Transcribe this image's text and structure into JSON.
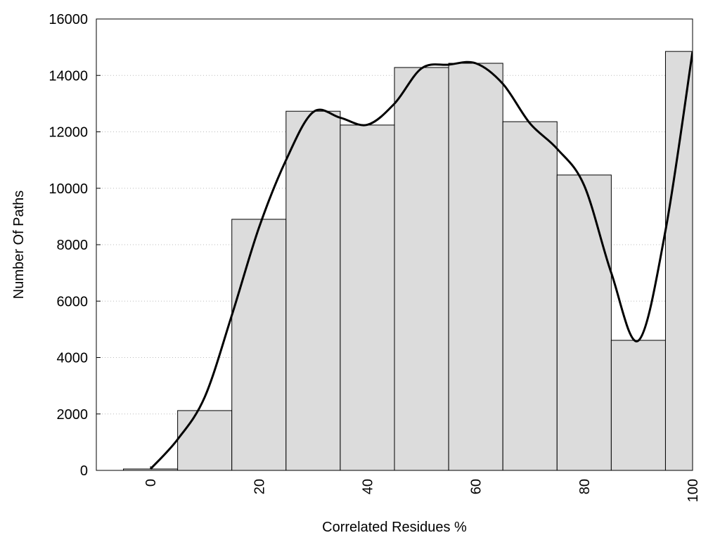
{
  "chart_data": {
    "type": "histogram",
    "xlabel": "Correlated Residues %",
    "ylabel": "Number Of Paths",
    "bins": [
      -5,
      5,
      15,
      25,
      35,
      45,
      55,
      65,
      75,
      85,
      95,
      105
    ],
    "values": [
      50,
      2120,
      8900,
      12730,
      12240,
      14280,
      14430,
      12360,
      10470,
      4610,
      14850
    ],
    "color": "#dcdcdc",
    "curve": {
      "color": "#000000",
      "x": [
        0,
        5,
        10,
        15,
        20,
        25,
        30,
        35,
        40,
        45,
        50,
        55,
        60,
        65,
        70,
        75,
        80,
        85,
        90,
        95,
        100
      ],
      "values": [
        50,
        1100,
        2600,
        5500,
        8600,
        11000,
        12700,
        12500,
        12250,
        13000,
        14250,
        14380,
        14430,
        13700,
        12300,
        11400,
        10100,
        7000,
        4600,
        8500,
        14850
      ]
    },
    "xlim": [
      -10,
      100
    ],
    "xticks": [
      0,
      20,
      40,
      60,
      80,
      100
    ],
    "ylim": [
      0,
      16000
    ],
    "yticks": [
      0,
      2000,
      4000,
      6000,
      8000,
      10000,
      12000,
      14000,
      16000
    ],
    "grid": true
  }
}
